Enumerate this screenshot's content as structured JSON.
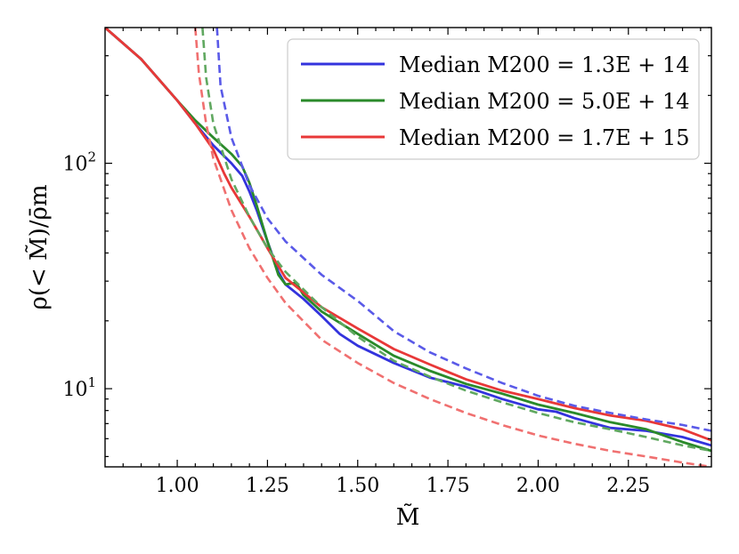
{
  "chart_data": {
    "type": "line",
    "title": "",
    "xlabel": "M̃",
    "ylabel": "ρ(< M̃)/ρ̄m",
    "xlim": [
      0.8,
      2.48
    ],
    "ylim": [
      4.5,
      400
    ],
    "yscale": "log",
    "grid": false,
    "legend_position": "top-right",
    "x_ticks": [
      1.0,
      1.25,
      1.5,
      1.75,
      2.0,
      2.25
    ],
    "x_tick_labels": [
      "1.00",
      "1.25",
      "1.50",
      "1.75",
      "2.00",
      "2.25"
    ],
    "y_ticks": [
      10,
      100
    ],
    "y_tick_label_base": "10",
    "y_tick_label_exps": [
      "1",
      "2"
    ],
    "series": [
      {
        "name": "Median M200 = 1.3E + 14",
        "legend_label": "Median M200 = 1.3E + 14",
        "color": "#3333dd",
        "style": "solid",
        "x": [
          0.8,
          0.9,
          1.0,
          1.05,
          1.1,
          1.15,
          1.18,
          1.2,
          1.22,
          1.25,
          1.28,
          1.3,
          1.35,
          1.4,
          1.45,
          1.5,
          1.6,
          1.7,
          1.8,
          1.9,
          2.0,
          2.05,
          2.1,
          2.2,
          2.3,
          2.4,
          2.48
        ],
        "y": [
          400,
          290,
          190,
          150,
          120,
          100,
          88,
          75,
          62,
          45,
          33,
          29,
          25,
          21,
          17.5,
          15.5,
          13,
          11.2,
          10.2,
          9,
          8.1,
          7.9,
          7.4,
          6.7,
          6.5,
          6.1,
          5.6
        ]
      },
      {
        "name": "Median M200 = 5.0E + 14",
        "legend_label": "Median M200 = 5.0E + 14",
        "color": "#2a8a2a",
        "style": "solid",
        "x": [
          0.8,
          0.9,
          1.0,
          1.05,
          1.1,
          1.15,
          1.18,
          1.2,
          1.22,
          1.25,
          1.28,
          1.3,
          1.33,
          1.35,
          1.4,
          1.5,
          1.6,
          1.7,
          1.8,
          1.9,
          2.0,
          2.1,
          2.2,
          2.3,
          2.4,
          2.48
        ],
        "y": [
          400,
          290,
          190,
          155,
          130,
          110,
          97,
          82,
          65,
          45,
          32,
          29,
          29.5,
          26,
          22,
          17.5,
          14,
          12,
          10.5,
          9.5,
          8.5,
          7.8,
          7.1,
          6.6,
          5.8,
          5.3
        ]
      },
      {
        "name": "Median M200 = 1.7E + 15",
        "legend_label": "Median M200 = 1.7E + 15",
        "color": "#e83838",
        "style": "solid",
        "x": [
          0.8,
          0.9,
          1.0,
          1.05,
          1.1,
          1.13,
          1.15,
          1.2,
          1.25,
          1.3,
          1.4,
          1.5,
          1.6,
          1.7,
          1.8,
          1.9,
          2.0,
          2.1,
          2.2,
          2.3,
          2.4,
          2.48
        ],
        "y": [
          400,
          290,
          190,
          150,
          115,
          90,
          78,
          58,
          42,
          31,
          23,
          18.5,
          15,
          12.8,
          11,
          9.8,
          9,
          8.2,
          7.6,
          7.2,
          6.6,
          5.9
        ]
      },
      {
        "name": "dashed 1.3E + 14",
        "color": "#5a5ae8",
        "style": "dashed",
        "x": [
          1.11,
          1.12,
          1.15,
          1.2,
          1.25,
          1.3,
          1.4,
          1.5,
          1.6,
          1.7,
          1.8,
          1.9,
          2.0,
          2.1,
          2.2,
          2.3,
          2.4,
          2.48
        ],
        "y": [
          400,
          220,
          130,
          80,
          57,
          45,
          32,
          24.5,
          18,
          14.5,
          12.3,
          10.6,
          9.3,
          8.4,
          7.8,
          7.3,
          6.9,
          6.5
        ]
      },
      {
        "name": "dashed 5.0E + 14",
        "color": "#60a860",
        "style": "dashed",
        "x": [
          1.07,
          1.08,
          1.1,
          1.15,
          1.2,
          1.25,
          1.3,
          1.4,
          1.5,
          1.6,
          1.7,
          1.8,
          1.9,
          2.0,
          2.1,
          2.2,
          2.3,
          2.4,
          2.48
        ],
        "y": [
          400,
          240,
          150,
          85,
          58,
          42,
          33,
          23,
          17,
          13.3,
          11.3,
          9.8,
          8.7,
          7.8,
          7.1,
          6.6,
          6.1,
          5.6,
          5.3
        ]
      },
      {
        "name": "dashed 1.7E + 15",
        "color": "#f07070",
        "style": "dashed",
        "x": [
          1.05,
          1.06,
          1.08,
          1.1,
          1.15,
          1.2,
          1.25,
          1.3,
          1.4,
          1.5,
          1.6,
          1.7,
          1.8,
          1.9,
          2.0,
          2.1,
          2.2,
          2.3,
          2.4,
          2.48
        ],
        "y": [
          400,
          250,
          150,
          105,
          62,
          42,
          31,
          24,
          16.5,
          13,
          10.6,
          9,
          7.8,
          6.9,
          6.2,
          5.7,
          5.3,
          5.0,
          4.7,
          4.5
        ]
      }
    ]
  }
}
